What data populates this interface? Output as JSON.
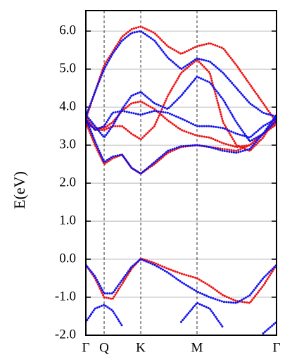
{
  "chart_data": {
    "type": "line",
    "ylabel": "E(eV)",
    "x": [
      0,
      0.048,
      0.096,
      0.14,
      0.19,
      0.24,
      0.288,
      0.36,
      0.43,
      0.5,
      0.583,
      0.65,
      0.72,
      0.79,
      0.86,
      0.93,
      1.0
    ],
    "xlim": [
      0,
      1
    ],
    "xticks": [
      {
        "value": 0,
        "label": "Γ"
      },
      {
        "value": 0.096,
        "label": "Q"
      },
      {
        "value": 0.288,
        "label": "K"
      },
      {
        "value": 0.583,
        "label": "M"
      },
      {
        "value": 1.0,
        "label": "Γ"
      }
    ],
    "ylim": [
      -2,
      6.54
    ],
    "yticks": [
      {
        "value": -2,
        "label": "-2.0"
      },
      {
        "value": -1,
        "label": "-1.0"
      },
      {
        "value": 0,
        "label": "0.0"
      },
      {
        "value": 1,
        "label": "1.0"
      },
      {
        "value": 2,
        "label": "2.0"
      },
      {
        "value": 3,
        "label": "3.0"
      },
      {
        "value": 4,
        "label": "4.0"
      },
      {
        "value": 5,
        "label": "5.0"
      },
      {
        "value": 6,
        "label": "6.0"
      }
    ],
    "grid": true,
    "series": [
      {
        "color": "#ee1111",
        "values": [
          -0.15,
          -0.5,
          -1.0,
          -1.05,
          -0.65,
          -0.25,
          0.02,
          -0.1,
          -0.25,
          -0.38,
          -0.5,
          -0.7,
          -0.95,
          -1.1,
          -1.15,
          -0.7,
          -0.15
        ]
      },
      {
        "color": "#1111ee",
        "values": [
          -0.15,
          -0.45,
          -0.9,
          -0.9,
          -0.55,
          -0.2,
          0.0,
          -0.15,
          -0.35,
          -0.6,
          -0.85,
          -1.0,
          -1.12,
          -1.15,
          -0.95,
          -0.5,
          -0.15
        ]
      },
      {
        "color": "#1111ee",
        "values": [
          -1.65,
          -1.3,
          -1.2,
          -1.35,
          -1.75,
          null,
          null,
          null,
          null,
          -1.65,
          -1.15,
          -1.3,
          -1.8,
          null,
          null,
          -1.95,
          -1.65
        ]
      },
      {
        "color": "#ee1111",
        "values": [
          3.7,
          4.4,
          5.1,
          5.45,
          5.85,
          6.05,
          6.12,
          5.95,
          5.6,
          5.4,
          5.6,
          5.68,
          5.55,
          5.1,
          4.6,
          4.1,
          3.6
        ]
      },
      {
        "color": "#ee1111",
        "values": [
          3.55,
          3.45,
          3.45,
          3.6,
          3.9,
          4.1,
          4.15,
          3.95,
          3.65,
          3.4,
          3.25,
          3.2,
          3.05,
          2.95,
          3.0,
          3.3,
          3.6
        ]
      },
      {
        "color": "#ee1111",
        "values": [
          3.6,
          3.0,
          2.5,
          2.65,
          2.75,
          2.4,
          2.25,
          2.5,
          2.8,
          2.95,
          3.0,
          2.95,
          2.9,
          2.85,
          3.0,
          3.3,
          3.55
        ]
      },
      {
        "color": "#ee1111",
        "values": [
          3.75,
          3.4,
          3.4,
          3.5,
          3.5,
          3.3,
          3.15,
          3.5,
          4.3,
          4.9,
          5.25,
          4.9,
          3.6,
          3.0,
          2.85,
          3.2,
          3.75
        ]
      },
      {
        "color": "#1111ee",
        "values": [
          3.75,
          4.4,
          5.0,
          5.4,
          5.75,
          5.95,
          6.0,
          5.75,
          5.3,
          5.0,
          5.28,
          5.2,
          4.9,
          4.5,
          4.1,
          3.85,
          3.75
        ]
      },
      {
        "color": "#1111ee",
        "values": [
          3.8,
          3.5,
          3.2,
          3.5,
          3.95,
          4.3,
          4.4,
          4.1,
          3.95,
          4.3,
          4.8,
          4.65,
          4.2,
          3.6,
          3.1,
          3.3,
          3.8
        ]
      },
      {
        "color": "#1111ee",
        "values": [
          3.65,
          3.4,
          3.5,
          3.85,
          3.9,
          3.85,
          3.8,
          3.9,
          3.85,
          3.7,
          3.5,
          3.5,
          3.45,
          3.3,
          3.2,
          3.5,
          3.7
        ]
      },
      {
        "color": "#1111ee",
        "values": [
          3.7,
          3.1,
          2.55,
          2.7,
          2.75,
          2.4,
          2.25,
          2.55,
          2.85,
          2.97,
          3.0,
          2.95,
          2.85,
          2.8,
          2.9,
          3.3,
          3.65
        ]
      }
    ]
  }
}
